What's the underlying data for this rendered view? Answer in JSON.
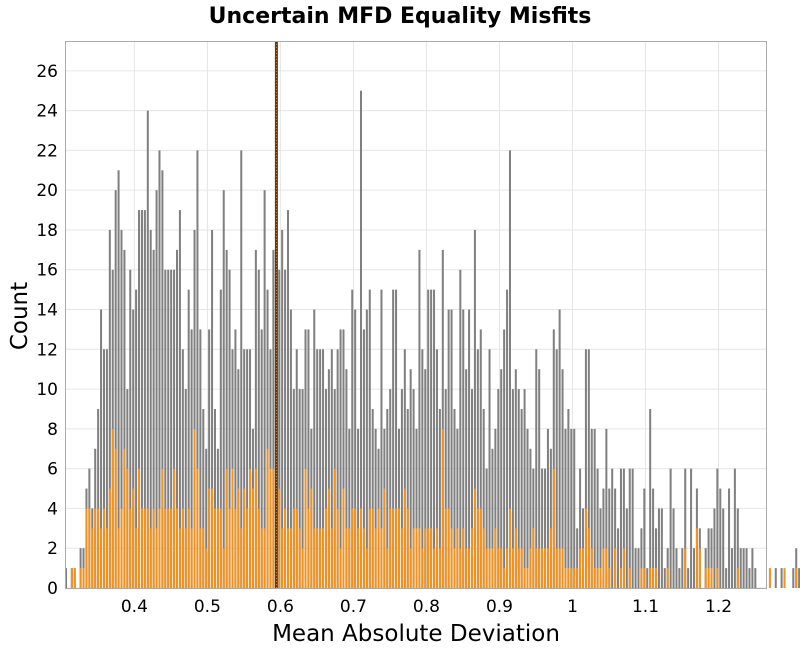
{
  "chart_data": {
    "type": "bar",
    "title": "Uncertain MFD Equality Misfits",
    "xlabel": "Mean Absolute Deviation",
    "ylabel": "Count",
    "xlim": [
      0.305,
      1.265
    ],
    "ylim": [
      0,
      27.5
    ],
    "x_ticks": [
      0.4,
      0.5,
      0.6,
      0.7,
      0.8,
      0.9,
      1,
      1.1,
      1.2
    ],
    "x_tick_labels": [
      "0.4",
      "0.5",
      "0.6",
      "0.7",
      "0.8",
      "0.9",
      "1",
      "1.1",
      "1.2"
    ],
    "y_ticks": [
      0,
      2,
      4,
      6,
      8,
      10,
      12,
      14,
      16,
      18,
      20,
      22,
      24,
      26
    ],
    "y_tick_labels": [
      "0",
      "2",
      "4",
      "6",
      "8",
      "10",
      "12",
      "14",
      "16",
      "18",
      "20",
      "22",
      "24",
      "26"
    ],
    "grid": true,
    "bin_start": 0.305,
    "bin_width": 0.004,
    "vline_x": 0.5945,
    "colors": {
      "all": "#808080",
      "subset": "#f0921e",
      "vline": "#5a3a1a"
    },
    "series": [
      {
        "values": [
          1,
          0,
          1,
          1,
          0,
          2,
          2,
          5,
          6,
          4,
          7,
          9,
          14,
          12,
          12,
          18,
          16,
          20,
          21,
          18,
          17,
          10,
          16,
          14,
          15,
          19,
          19,
          19,
          24,
          18,
          17,
          20,
          22,
          21,
          16,
          16,
          16,
          16,
          17,
          19,
          12,
          10,
          15,
          13,
          18,
          22,
          13,
          9,
          7,
          13,
          18,
          9,
          7,
          15,
          20,
          17,
          16,
          12,
          13,
          11,
          22,
          12,
          12,
          12,
          8,
          17,
          16,
          13,
          20,
          15,
          12,
          17,
          11,
          16,
          18,
          16,
          19,
          14,
          10,
          12,
          10,
          10,
          13,
          13,
          8,
          14,
          12,
          12,
          12,
          10,
          11,
          12,
          10,
          12,
          13,
          13,
          11,
          8,
          15,
          14,
          8,
          25,
          13,
          14,
          15,
          9,
          8,
          7,
          15,
          8,
          9,
          10,
          15,
          15,
          8,
          10,
          12,
          9,
          11,
          10,
          8,
          17,
          12,
          11,
          15,
          15,
          15,
          12,
          9,
          17,
          10,
          14,
          14,
          9,
          8,
          16,
          14,
          11,
          14,
          10,
          18,
          12,
          13,
          9,
          6,
          12,
          7,
          8,
          10,
          11,
          13,
          15,
          22,
          10,
          11,
          10,
          9,
          10,
          8,
          7,
          6,
          12,
          11,
          6,
          6,
          8,
          7,
          13,
          12,
          14,
          11,
          8,
          9,
          8,
          8,
          3,
          6,
          4,
          12,
          12,
          8,
          8,
          6,
          4,
          5,
          8,
          5,
          6,
          5,
          3,
          6,
          6,
          4,
          6,
          6,
          2,
          2,
          3,
          5,
          1,
          9,
          5,
          3,
          4,
          4,
          1,
          2,
          6,
          4,
          2,
          1,
          2,
          6,
          1,
          6,
          2,
          5,
          3,
          0,
          2,
          3,
          3,
          4,
          6,
          5,
          4,
          1,
          5,
          2,
          6,
          4,
          2,
          2,
          2,
          1,
          2,
          1,
          0,
          0,
          0,
          0,
          0,
          0,
          1,
          0,
          1,
          0,
          0,
          0,
          1,
          2,
          1,
          0,
          2,
          0,
          1,
          1
        ]
      },
      {
        "values": [
          0,
          0,
          1,
          1,
          0,
          1,
          1,
          4,
          4,
          3,
          4,
          4,
          3,
          4,
          3,
          5,
          8,
          7,
          3,
          4,
          7,
          6,
          4,
          5,
          3,
          6,
          4,
          4,
          4,
          3,
          4,
          3,
          4,
          6,
          4,
          4,
          4,
          6,
          4,
          3,
          4,
          3,
          4,
          3,
          8,
          6,
          3,
          3,
          2,
          5,
          5,
          4,
          4,
          4,
          2,
          6,
          4,
          6,
          4,
          5,
          3,
          5,
          4,
          6,
          5,
          6,
          4,
          3,
          3,
          7,
          6,
          6,
          3,
          5,
          3,
          4,
          3,
          3,
          4,
          4,
          3,
          2,
          6,
          4,
          5,
          3,
          3,
          3,
          3,
          4,
          5,
          3,
          6,
          4,
          2,
          5,
          3,
          3,
          4,
          4,
          3,
          4,
          3,
          2,
          4,
          4,
          3,
          4,
          3,
          5,
          2,
          4,
          4,
          4,
          4,
          3,
          5,
          4,
          2,
          3,
          3,
          3,
          2,
          3,
          3,
          3,
          2,
          3,
          2,
          8,
          4,
          4,
          3,
          2,
          3,
          2,
          3,
          2,
          2,
          3,
          5,
          4,
          4,
          3,
          2,
          2,
          2,
          3,
          2,
          2,
          1,
          2,
          4,
          2,
          3,
          2,
          2,
          1,
          1,
          2,
          3,
          2,
          2,
          2,
          2,
          2,
          3,
          6,
          2,
          2,
          2,
          1,
          1,
          1,
          1,
          1,
          2,
          2,
          4,
          3,
          2,
          1,
          1,
          1,
          2,
          2,
          1,
          0,
          2,
          0,
          1,
          2,
          0,
          1,
          0,
          0,
          0,
          1,
          1,
          0,
          1,
          1,
          1,
          0,
          0,
          0,
          1,
          0,
          0,
          0,
          0,
          0,
          2,
          0,
          0,
          0,
          3,
          2,
          0,
          1,
          1,
          1,
          0,
          1,
          0,
          0,
          0,
          0,
          0,
          0,
          1,
          0,
          0,
          0,
          0,
          0,
          0,
          0,
          0,
          0,
          0,
          1,
          0,
          0,
          0,
          0,
          1,
          0,
          0,
          0,
          1,
          0,
          0,
          0,
          0,
          0,
          0,
          0,
          0,
          0,
          0,
          0,
          0
        ]
      }
    ]
  }
}
